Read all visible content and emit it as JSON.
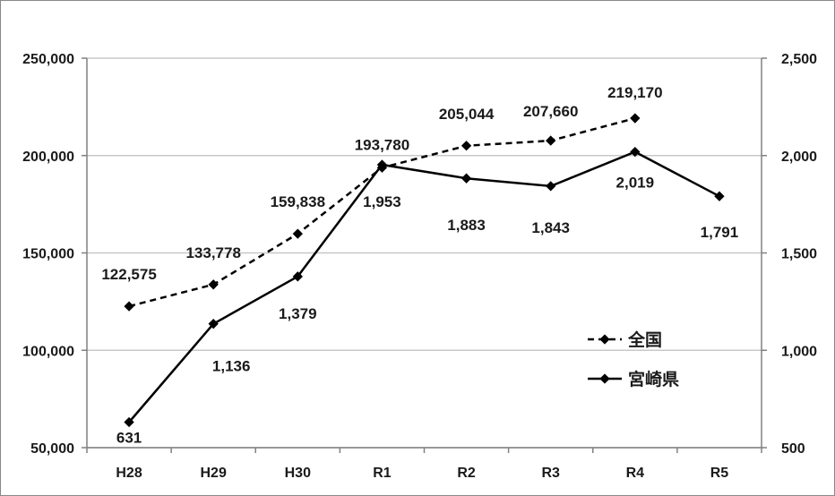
{
  "chart_data": {
    "type": "line",
    "categories": [
      "H28",
      "H29",
      "H30",
      "R1",
      "R2",
      "R3",
      "R4",
      "R5"
    ],
    "series": [
      {
        "name": "全国",
        "axis": "left",
        "line_style": "dashed",
        "values": [
          122575,
          133778,
          159838,
          193780,
          205044,
          207660,
          219170,
          null
        ],
        "labels": [
          "122,575",
          "133,778",
          "159,838",
          "193,780",
          "205,044",
          "207,660",
          "219,170",
          ""
        ]
      },
      {
        "name": "宮崎県",
        "axis": "right",
        "line_style": "solid",
        "values": [
          631,
          1136,
          1379,
          1953,
          1883,
          1843,
          2019,
          1791
        ],
        "labels": [
          "631",
          "1,136",
          "1,379",
          "1,953",
          "1,883",
          "1,843",
          "2,019",
          "1,791"
        ]
      }
    ],
    "y_left": {
      "ylim": [
        50000,
        250000
      ],
      "ticks": [
        "50,000",
        "100,000",
        "150,000",
        "200,000",
        "250,000"
      ]
    },
    "y_right": {
      "ylim": [
        500,
        2500
      ],
      "ticks": [
        "500",
        "1,000",
        "1,500",
        "2,000",
        "2,500"
      ]
    },
    "grid": true,
    "legend_position": "right-middle",
    "colors": {
      "line": "#000000",
      "grid": "#c8c8c8",
      "text": "#1a1a1a"
    }
  }
}
